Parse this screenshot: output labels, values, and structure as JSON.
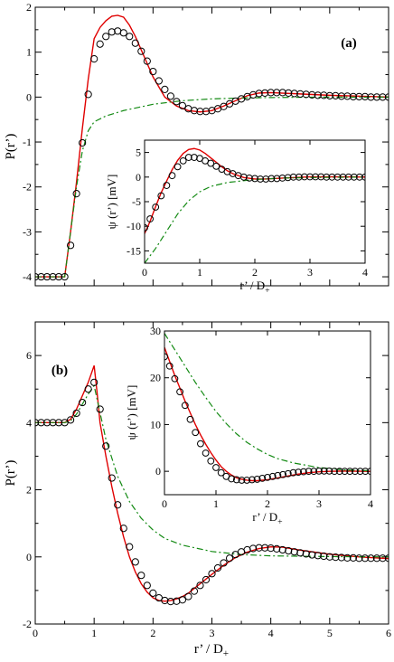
{
  "chart_data": [
    {
      "type": "line",
      "panel_label": "(a)",
      "xlabel": "",
      "ylabel": "P(r’)",
      "xlim": [
        0,
        6
      ],
      "ylim": [
        -4.2,
        2
      ],
      "xticks": [
        0,
        1,
        2,
        3,
        4,
        5,
        6
      ],
      "yticks": [
        -4,
        -3,
        -2,
        -1,
        0,
        1,
        2
      ],
      "show_xtick_labels": false,
      "series": [
        {
          "style": "red-solid",
          "x": [
            0,
            0.5,
            0.6,
            0.7,
            0.8,
            0.9,
            1.0,
            1.1,
            1.2,
            1.3,
            1.4,
            1.5,
            1.6,
            1.7,
            1.8,
            1.9,
            2.0,
            2.2,
            2.4,
            2.6,
            2.8,
            3.0,
            3.2,
            3.4,
            3.6,
            3.8,
            4.0,
            4.5,
            5.0,
            6.0
          ],
          "y": [
            -4,
            -4,
            -3.0,
            -1.9,
            -0.7,
            0.4,
            1.3,
            1.55,
            1.7,
            1.8,
            1.82,
            1.78,
            1.6,
            1.35,
            1.05,
            0.75,
            0.45,
            0.0,
            -0.2,
            -0.3,
            -0.33,
            -0.3,
            -0.2,
            -0.08,
            0.03,
            0.09,
            0.1,
            0.07,
            0.04,
            0.0
          ]
        },
        {
          "style": "green-dashdot",
          "x": [
            0,
            0.5,
            0.6,
            0.7,
            0.8,
            0.9,
            1.0,
            1.2,
            1.5,
            2.0,
            2.5,
            3.0,
            3.5,
            4.0,
            5.0,
            6.0
          ],
          "y": [
            -4,
            -4,
            -3.0,
            -2.0,
            -1.2,
            -0.75,
            -0.55,
            -0.42,
            -0.3,
            -0.16,
            -0.08,
            -0.04,
            -0.02,
            -0.01,
            0.0,
            0.0
          ]
        },
        {
          "style": "black-circles",
          "x": [
            0.0,
            0.1,
            0.2,
            0.3,
            0.4,
            0.5,
            0.6,
            0.7,
            0.8,
            0.9,
            1.0,
            1.1,
            1.2,
            1.3,
            1.4,
            1.5,
            1.6,
            1.7,
            1.8,
            1.9,
            2.0,
            2.1,
            2.2,
            2.3,
            2.4,
            2.5,
            2.6,
            2.7,
            2.8,
            2.9,
            3.0,
            3.1,
            3.2,
            3.3,
            3.4,
            3.5,
            3.6,
            3.7,
            3.8,
            3.9,
            4.0,
            4.1,
            4.2,
            4.3,
            4.4,
            4.5,
            4.6,
            4.7,
            4.8,
            4.9,
            5.0,
            5.1,
            5.2,
            5.3,
            5.4,
            5.5,
            5.6,
            5.7,
            5.8,
            5.9,
            6.0
          ],
          "y": [
            -4,
            -4,
            -4,
            -4,
            -4,
            -4,
            -3.3,
            -2.15,
            -1.02,
            0.06,
            0.85,
            1.18,
            1.35,
            1.45,
            1.47,
            1.43,
            1.35,
            1.2,
            1.02,
            0.8,
            0.57,
            0.36,
            0.17,
            0.02,
            -0.1,
            -0.19,
            -0.26,
            -0.3,
            -0.32,
            -0.32,
            -0.3,
            -0.26,
            -0.21,
            -0.15,
            -0.09,
            -0.04,
            0.01,
            0.05,
            0.08,
            0.09,
            0.1,
            0.1,
            0.1,
            0.09,
            0.08,
            0.07,
            0.06,
            0.05,
            0.04,
            0.04,
            0.03,
            0.03,
            0.02,
            0.02,
            0.01,
            0.01,
            0.01,
            0.0,
            0.0,
            0.0,
            0.0
          ]
        }
      ],
      "inset": {
        "xlabel": "r’ / D+",
        "ylabel": "ψ (r’) [mV]",
        "xlim": [
          0,
          4
        ],
        "ylim": [
          -17.5,
          7.5
        ],
        "xticks": [
          0,
          1,
          2,
          3,
          4
        ],
        "yticks": [
          -15,
          -10,
          -5,
          0,
          5
        ],
        "series": [
          {
            "style": "red-solid",
            "x": [
              0,
              0.1,
              0.2,
              0.3,
              0.4,
              0.5,
              0.6,
              0.7,
              0.8,
              0.9,
              1.0,
              1.1,
              1.2,
              1.3,
              1.4,
              1.5,
              1.6,
              1.8,
              2.0,
              2.2,
              2.5,
              3.0,
              3.5,
              4.0
            ],
            "y": [
              -11.5,
              -9.0,
              -6.0,
              -3.2,
              -0.8,
              1.5,
              3.4,
              4.8,
              5.6,
              5.8,
              5.5,
              4.8,
              3.9,
              3.0,
              2.1,
              1.3,
              0.7,
              -0.1,
              -0.4,
              -0.4,
              -0.2,
              0.05,
              0.05,
              0.0
            ]
          },
          {
            "style": "green-dashdot",
            "x": [
              0,
              0.2,
              0.4,
              0.6,
              0.8,
              1.0,
              1.2,
              1.5,
              2.0,
              2.5,
              3.0,
              4.0
            ],
            "y": [
              -17.5,
              -14.5,
              -11.0,
              -7.5,
              -4.8,
              -3.0,
              -1.9,
              -1.1,
              -0.5,
              -0.2,
              -0.1,
              0.0
            ]
          },
          {
            "style": "black-circles",
            "x": [
              0.0,
              0.1,
              0.2,
              0.3,
              0.4,
              0.5,
              0.6,
              0.7,
              0.8,
              0.9,
              1.0,
              1.1,
              1.2,
              1.3,
              1.4,
              1.5,
              1.6,
              1.7,
              1.8,
              1.9,
              2.0,
              2.1,
              2.2,
              2.3,
              2.4,
              2.5,
              2.6,
              2.7,
              2.8,
              2.9,
              3.0,
              3.1,
              3.2,
              3.3,
              3.4,
              3.5,
              3.6,
              3.7,
              3.8,
              3.9,
              4.0
            ],
            "y": [
              -10.3,
              -8.5,
              -6.1,
              -3.8,
              -1.7,
              0.3,
              2.1,
              3.3,
              4.0,
              4.0,
              3.8,
              3.3,
              2.8,
              2.2,
              1.6,
              1.1,
              0.7,
              0.3,
              0.0,
              -0.2,
              -0.3,
              -0.4,
              -0.4,
              -0.3,
              -0.3,
              -0.2,
              -0.1,
              0.0,
              0.0,
              0.05,
              0.05,
              0.05,
              0.05,
              0.0,
              0.0,
              0.0,
              0.0,
              0.0,
              0.0,
              0.0,
              0.0
            ]
          }
        ]
      }
    },
    {
      "type": "line",
      "panel_label": "(b)",
      "xlabel": "r’ / D+",
      "ylabel": "P(r’)",
      "xlim": [
        0,
        6
      ],
      "ylim": [
        -2,
        7
      ],
      "xticks": [
        0,
        1,
        2,
        3,
        4,
        5,
        6
      ],
      "yticks": [
        -2,
        0,
        2,
        4,
        6
      ],
      "show_xtick_labels": true,
      "series": [
        {
          "style": "red-solid",
          "x": [
            0,
            0.5,
            0.6,
            0.7,
            0.8,
            0.9,
            1.0,
            1.05,
            1.1,
            1.2,
            1.3,
            1.4,
            1.5,
            1.6,
            1.7,
            1.8,
            1.9,
            2.0,
            2.1,
            2.2,
            2.3,
            2.4,
            2.5,
            2.6,
            2.8,
            3.0,
            3.2,
            3.4,
            3.6,
            3.8,
            4.0,
            4.2,
            4.5,
            5.0,
            5.5,
            6.0
          ],
          "y": [
            4,
            4,
            4.1,
            4.4,
            4.8,
            5.2,
            5.7,
            4.9,
            4.0,
            3.0,
            2.1,
            1.3,
            0.6,
            0.0,
            -0.45,
            -0.8,
            -1.05,
            -1.22,
            -1.3,
            -1.32,
            -1.3,
            -1.25,
            -1.18,
            -1.08,
            -0.8,
            -0.52,
            -0.25,
            -0.02,
            0.14,
            0.25,
            0.3,
            0.29,
            0.2,
            0.08,
            0.0,
            -0.05
          ]
        },
        {
          "style": "green-dashdot",
          "x": [
            0,
            0.5,
            0.6,
            0.7,
            0.8,
            0.9,
            1.0,
            1.1,
            1.2,
            1.4,
            1.6,
            1.8,
            2.0,
            2.2,
            2.5,
            3.0,
            3.5,
            4.0,
            5.0,
            6.0
          ],
          "y": [
            4,
            4,
            4.05,
            4.25,
            4.55,
            4.85,
            5.1,
            4.3,
            3.5,
            2.4,
            1.65,
            1.15,
            0.8,
            0.55,
            0.35,
            0.16,
            0.07,
            0.03,
            0.01,
            0.0
          ]
        },
        {
          "style": "black-circles",
          "x": [
            0.0,
            0.1,
            0.2,
            0.3,
            0.4,
            0.5,
            0.6,
            0.7,
            0.8,
            0.9,
            1.0,
            1.1,
            1.2,
            1.3,
            1.4,
            1.5,
            1.6,
            1.7,
            1.8,
            1.9,
            2.0,
            2.1,
            2.2,
            2.3,
            2.4,
            2.5,
            2.6,
            2.7,
            2.8,
            2.9,
            3.0,
            3.1,
            3.2,
            3.3,
            3.4,
            3.5,
            3.6,
            3.7,
            3.8,
            3.9,
            4.0,
            4.1,
            4.2,
            4.3,
            4.4,
            4.5,
            4.6,
            4.7,
            4.8,
            4.9,
            5.0,
            5.1,
            5.2,
            5.3,
            5.4,
            5.5,
            5.6,
            5.7,
            5.8,
            5.9,
            6.0
          ],
          "y": [
            4,
            4,
            4,
            4,
            4,
            4,
            4.08,
            4.28,
            4.6,
            5.0,
            5.2,
            4.4,
            3.3,
            2.35,
            1.55,
            0.85,
            0.3,
            -0.15,
            -0.55,
            -0.85,
            -1.08,
            -1.22,
            -1.3,
            -1.33,
            -1.32,
            -1.28,
            -1.18,
            -1.02,
            -0.85,
            -0.68,
            -0.5,
            -0.33,
            -0.18,
            -0.04,
            0.07,
            0.15,
            0.21,
            0.25,
            0.27,
            0.27,
            0.26,
            0.24,
            0.21,
            0.18,
            0.15,
            0.12,
            0.09,
            0.06,
            0.04,
            0.02,
            0.0,
            -0.01,
            -0.02,
            -0.03,
            -0.03,
            -0.04,
            -0.04,
            -0.04,
            -0.04,
            -0.04,
            -0.04
          ]
        }
      ],
      "inset": {
        "xlabel": "r’ / D+",
        "ylabel": "ψ (r’) [mV]",
        "xlim": [
          0,
          4
        ],
        "ylim": [
          -5,
          30
        ],
        "xticks": [
          0,
          1,
          2,
          3,
          4
        ],
        "yticks": [
          0,
          10,
          20,
          30
        ],
        "series": [
          {
            "style": "red-solid",
            "x": [
              0,
              0.1,
              0.2,
              0.3,
              0.4,
              0.5,
              0.6,
              0.7,
              0.8,
              0.9,
              1.0,
              1.1,
              1.2,
              1.3,
              1.4,
              1.5,
              1.6,
              1.7,
              1.8,
              2.0,
              2.2,
              2.4,
              2.6,
              2.8,
              3.0,
              3.2,
              3.5,
              4.0
            ],
            "y": [
              26.5,
              23.5,
              20.5,
              17.8,
              15.0,
              12.5,
              10.0,
              7.8,
              5.8,
              4.0,
              2.4,
              1.0,
              0.0,
              -0.8,
              -1.4,
              -1.7,
              -1.9,
              -2.0,
              -2.0,
              -1.8,
              -1.4,
              -1.0,
              -0.6,
              -0.3,
              -0.1,
              0.0,
              0.05,
              0.0
            ]
          },
          {
            "style": "green-dashdot",
            "x": [
              0,
              0.2,
              0.4,
              0.6,
              0.8,
              1.0,
              1.2,
              1.4,
              1.6,
              1.8,
              2.0,
              2.2,
              2.5,
              3.0,
              3.5,
              4.0
            ],
            "y": [
              29.5,
              26.0,
              22.5,
              19.0,
              15.8,
              12.8,
              10.2,
              8.0,
              6.2,
              4.8,
              3.6,
              2.7,
              1.8,
              0.8,
              0.3,
              0.1
            ]
          },
          {
            "style": "black-circles",
            "x": [
              0.0,
              0.1,
              0.2,
              0.3,
              0.4,
              0.5,
              0.6,
              0.7,
              0.8,
              0.9,
              1.0,
              1.1,
              1.2,
              1.3,
              1.4,
              1.5,
              1.6,
              1.7,
              1.8,
              1.9,
              2.0,
              2.1,
              2.2,
              2.3,
              2.4,
              2.5,
              2.6,
              2.7,
              2.8,
              2.9,
              3.0,
              3.1,
              3.2,
              3.3,
              3.4,
              3.5,
              3.6,
              3.7,
              3.8,
              3.9,
              4.0
            ],
            "y": [
              24.5,
              22.5,
              19.8,
              17.0,
              14.1,
              11.1,
              8.3,
              5.9,
              3.9,
              2.2,
              0.8,
              -0.3,
              -1.1,
              -1.6,
              -1.8,
              -1.9,
              -1.9,
              -1.8,
              -1.7,
              -1.5,
              -1.3,
              -1.1,
              -0.9,
              -0.7,
              -0.5,
              -0.3,
              -0.2,
              -0.1,
              0.0,
              0.0,
              0.05,
              0.05,
              0.05,
              0.0,
              0.0,
              0.0,
              0.0,
              0.0,
              0.0,
              0.0,
              0.0
            ]
          }
        ]
      }
    }
  ]
}
